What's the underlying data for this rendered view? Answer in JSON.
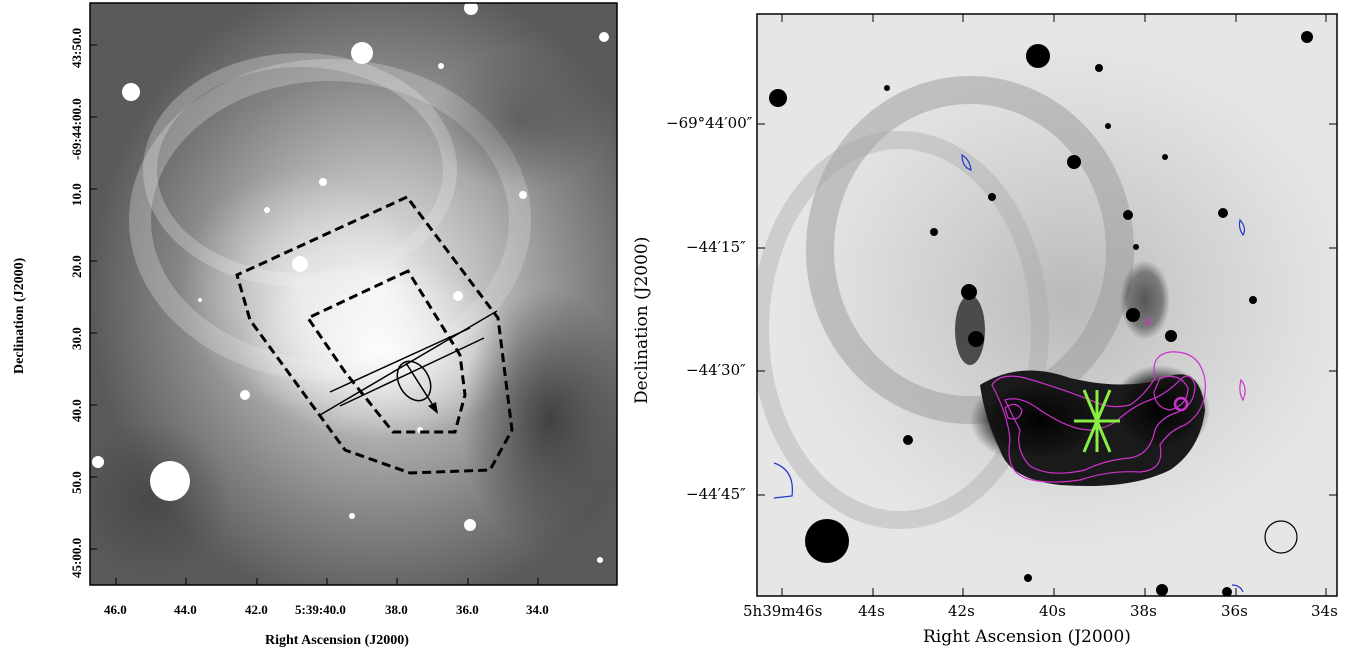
{
  "left_panel": {
    "xlabel": "Right Ascension (J2000)",
    "ylabel": "Declination (J2000)",
    "xticks": [
      "46.0",
      "44.0",
      "42.0",
      "5:39:40.0",
      "38.0",
      "36.0",
      "34.0"
    ],
    "yticks": [
      "43:50.0",
      "-69:44:00.0",
      "10.0",
      "20.0",
      "30.0",
      "40.0",
      "50.0",
      "45:00.0"
    ]
  },
  "right_panel": {
    "xlabel": "Right Ascension (J2000)",
    "ylabel": "Declination (J2000)",
    "xticks": [
      "5h39m46s",
      "44s",
      "42s",
      "40s",
      "38s",
      "36s",
      "34s"
    ],
    "yticks": [
      "−69°44′00″",
      "−44′15″",
      "−44′30″",
      "−44′45″"
    ],
    "contour_colors": {
      "outer_contours": "#cc33cc",
      "negative_contours": "#2233cc",
      "marker": "#88ee44"
    }
  }
}
